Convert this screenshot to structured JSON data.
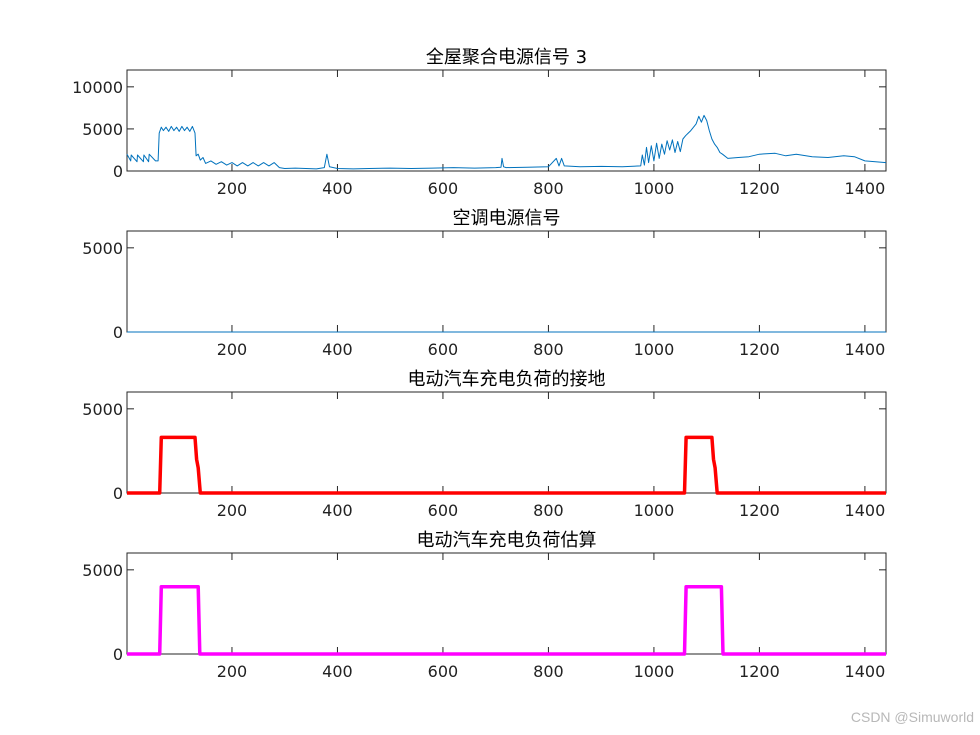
{
  "watermark": "CSDN @Simuworld",
  "chart_data": [
    {
      "type": "line",
      "title": "全屋聚合电源信号 3",
      "xlim": [
        1,
        1440
      ],
      "ylim": [
        0,
        12000
      ],
      "xticks": [
        200,
        400,
        600,
        800,
        1000,
        1200,
        1400
      ],
      "yticks": [
        0,
        5000,
        10000
      ],
      "color": "#0072BD",
      "line_width": "thin",
      "series": [
        {
          "x": [
            1,
            8,
            9,
            20,
            21,
            32,
            33,
            42,
            43,
            55,
            60,
            62,
            66,
            70,
            75,
            80,
            85,
            90,
            95,
            100,
            105,
            110,
            115,
            120,
            125,
            130,
            132,
            136,
            140,
            145,
            150,
            160,
            170,
            180,
            190,
            200,
            210,
            220,
            230,
            240,
            250,
            260,
            270,
            280,
            290,
            300,
            320,
            340,
            360,
            375,
            380,
            385,
            400,
            430,
            460,
            500,
            540,
            580,
            620,
            660,
            700,
            710,
            712,
            715,
            720,
            760,
            800,
            815,
            820,
            825,
            830,
            860,
            900,
            940,
            975,
            978,
            982,
            986,
            990,
            995,
            1000,
            1005,
            1010,
            1015,
            1020,
            1025,
            1030,
            1035,
            1040,
            1045,
            1050,
            1055,
            1060,
            1065,
            1070,
            1080,
            1085,
            1090,
            1095,
            1100,
            1105,
            1110,
            1115,
            1120,
            1125,
            1130,
            1140,
            1160,
            1180,
            1200,
            1230,
            1250,
            1270,
            1300,
            1330,
            1360,
            1380,
            1400,
            1420,
            1440
          ],
          "y": [
            2000,
            1200,
            1900,
            1100,
            1900,
            1100,
            1900,
            1100,
            2000,
            1200,
            1200,
            4500,
            5200,
            4800,
            5200,
            4700,
            5300,
            4800,
            5200,
            4700,
            5300,
            4800,
            5200,
            4700,
            5300,
            4500,
            1800,
            2000,
            1300,
            1600,
            900,
            1200,
            800,
            1100,
            700,
            1000,
            600,
            1000,
            600,
            1000,
            600,
            1000,
            600,
            1000,
            400,
            300,
            350,
            300,
            250,
            400,
            2000,
            500,
            300,
            250,
            300,
            350,
            300,
            350,
            400,
            350,
            400,
            450,
            1500,
            500,
            400,
            450,
            500,
            1500,
            600,
            1500,
            600,
            500,
            550,
            500,
            600,
            1900,
            700,
            2800,
            1000,
            3000,
            1200,
            3300,
            1500,
            3200,
            2000,
            3600,
            2500,
            3700,
            2200,
            3500,
            2300,
            3800,
            4200,
            4500,
            4800,
            5600,
            6500,
            5800,
            6600,
            6000,
            4800,
            3800,
            3200,
            2800,
            2200,
            2000,
            1500,
            1600,
            1700,
            2000,
            2100,
            1800,
            2000,
            1700,
            1600,
            1800,
            1700,
            1200,
            1100,
            1000
          ]
        }
      ]
    },
    {
      "type": "line",
      "title": "空调电源信号",
      "xlim": [
        1,
        1440
      ],
      "ylim": [
        0,
        6000
      ],
      "xticks": [
        200,
        400,
        600,
        800,
        1000,
        1200,
        1400
      ],
      "yticks": [
        0,
        5000
      ],
      "color": "#0072BD",
      "line_width": "thin",
      "series": [
        {
          "x": [
            1,
            1440
          ],
          "y": [
            0,
            0
          ]
        }
      ]
    },
    {
      "type": "line",
      "title": "电动汽车充电负荷的接地",
      "xlim": [
        1,
        1440
      ],
      "ylim": [
        0,
        6000
      ],
      "xticks": [
        200,
        400,
        600,
        800,
        1000,
        1200,
        1400
      ],
      "yticks": [
        0,
        5000
      ],
      "color": "#FF0000",
      "line_width": "thick",
      "series": [
        {
          "x": [
            1,
            63,
            66,
            130,
            133,
            136,
            140,
            1058,
            1061,
            1110,
            1113,
            1116,
            1120,
            1440
          ],
          "y": [
            0,
            0,
            3300,
            3300,
            2000,
            1500,
            0,
            0,
            3300,
            3300,
            2000,
            1500,
            0,
            0
          ]
        }
      ]
    },
    {
      "type": "line",
      "title": "电动汽车充电负荷估算",
      "xlim": [
        1,
        1440
      ],
      "ylim": [
        0,
        6000
      ],
      "xticks": [
        200,
        400,
        600,
        800,
        1000,
        1200,
        1400
      ],
      "yticks": [
        0,
        5000
      ],
      "color": "#FF00FF",
      "line_width": "thick",
      "series": [
        {
          "x": [
            1,
            63,
            66,
            136,
            139,
            1058,
            1061,
            1128,
            1131,
            1440
          ],
          "y": [
            0,
            0,
            4000,
            4000,
            0,
            0,
            4000,
            4000,
            0,
            0
          ]
        }
      ]
    }
  ]
}
